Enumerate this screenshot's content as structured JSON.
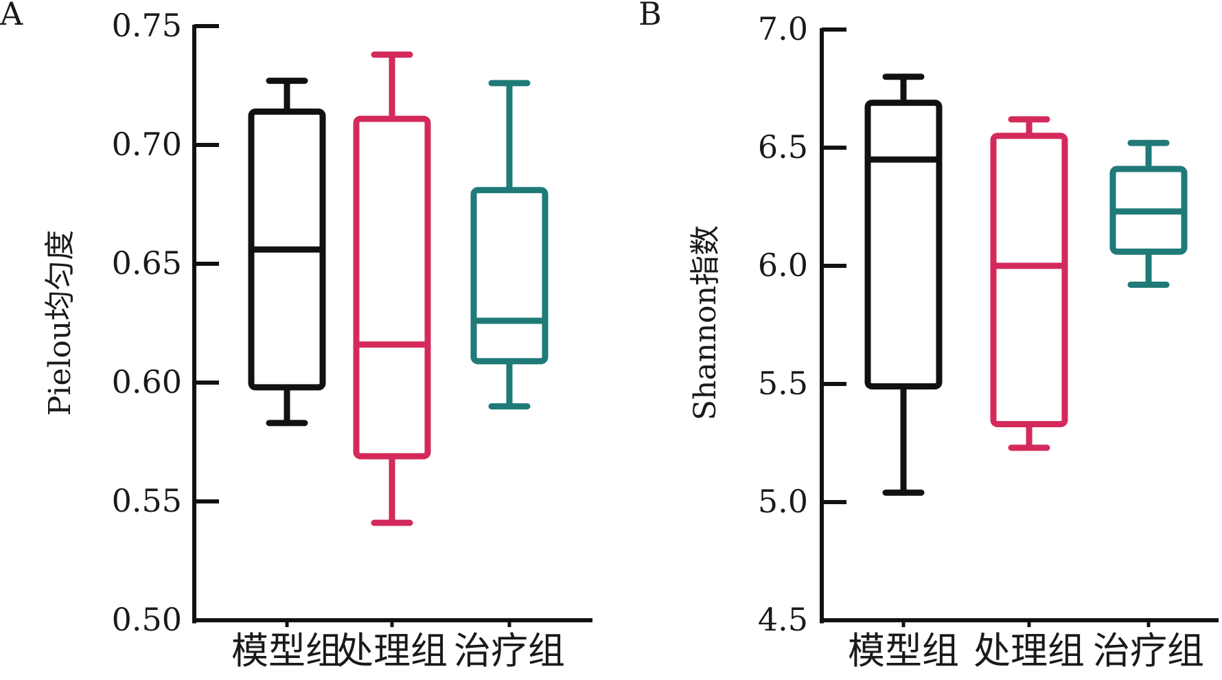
{
  "chart_data": [
    {
      "panel": "A",
      "type": "box",
      "ylabel": "Pielou均匀度",
      "ylim": [
        0.5,
        0.75
      ],
      "yticks": [
        "0.50",
        "0.55",
        "0.60",
        "0.65",
        "0.70",
        "0.75"
      ],
      "categories": [
        "模型组",
        "处理组",
        "治疗组"
      ],
      "colors": [
        "#111111",
        "#d42a5b",
        "#1f7a78"
      ],
      "boxes": [
        {
          "min": 0.583,
          "q1": 0.598,
          "median": 0.656,
          "q3": 0.714,
          "max": 0.727
        },
        {
          "min": 0.541,
          "q1": 0.569,
          "median": 0.616,
          "q3": 0.711,
          "max": 0.738
        },
        {
          "min": 0.59,
          "q1": 0.609,
          "median": 0.626,
          "q3": 0.681,
          "max": 0.726
        }
      ]
    },
    {
      "panel": "B",
      "type": "box",
      "ylabel": "Shannon指数",
      "ylim": [
        4.5,
        7.0
      ],
      "yticks": [
        "4.5",
        "5.0",
        "5.5",
        "6.0",
        "6.5",
        "7.0"
      ],
      "categories": [
        "模型组",
        "处理组",
        "治疗组"
      ],
      "colors": [
        "#111111",
        "#d42a5b",
        "#1f7a78"
      ],
      "boxes": [
        {
          "min": 5.04,
          "q1": 5.49,
          "median": 6.45,
          "q3": 6.69,
          "max": 6.8
        },
        {
          "min": 5.23,
          "q1": 5.33,
          "median": 6.0,
          "q3": 6.55,
          "max": 6.62
        },
        {
          "min": 5.92,
          "q1": 6.06,
          "median": 6.23,
          "q3": 6.41,
          "max": 6.52
        }
      ]
    }
  ]
}
